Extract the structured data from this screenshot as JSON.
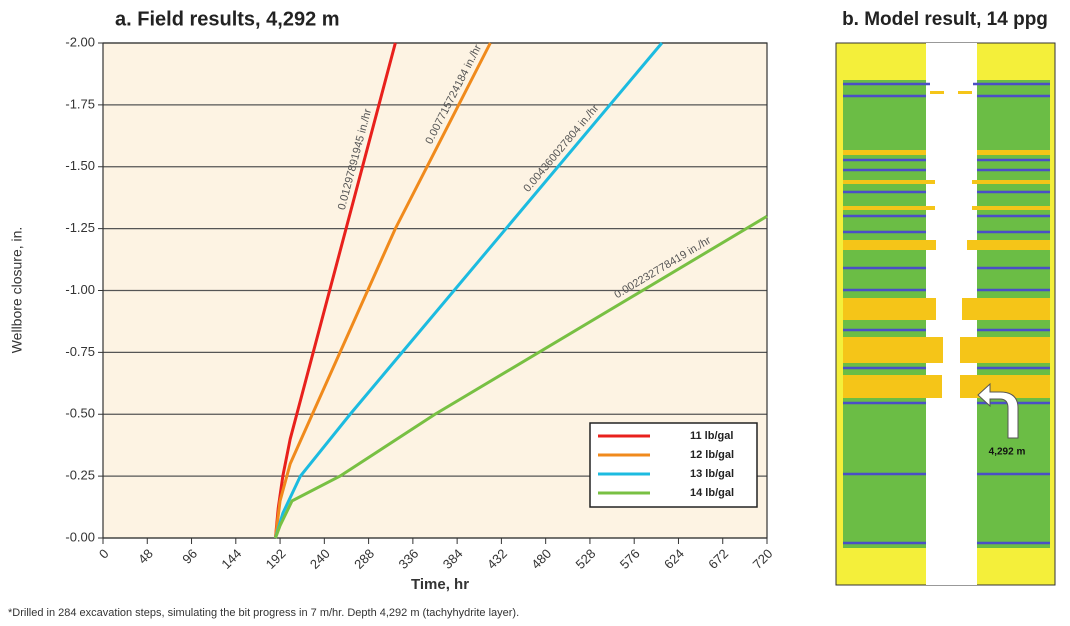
{
  "chart_data": {
    "type": "line",
    "title": "a. Field results, 4,292 m",
    "x_label": "Time, hr",
    "y_label": "Wellbore closure, in.",
    "xlim": [
      0,
      720
    ],
    "xticks": [
      0,
      48,
      96,
      144,
      192,
      240,
      288,
      336,
      384,
      432,
      480,
      528,
      576,
      624,
      672,
      720
    ],
    "ylim": [
      0,
      -2
    ],
    "yticks": [
      {
        "value": 0,
        "label": "-0.00"
      },
      {
        "value": -0.25,
        "label": "-0.25"
      },
      {
        "value": -0.5,
        "label": "-0.50"
      },
      {
        "value": -0.75,
        "label": "-0.75"
      },
      {
        "value": -1,
        "label": "-1.00"
      },
      {
        "value": -1.25,
        "label": "-1.25"
      },
      {
        "value": -1.5,
        "label": "-1.50"
      },
      {
        "value": -1.75,
        "label": "-1.75"
      },
      {
        "value": -2,
        "label": "-2.00"
      }
    ],
    "grid": true,
    "legend": "lower-right",
    "series": [
      {
        "name": "11 lb/gal",
        "color": "#e8201c",
        "rate_label": "0.01297891945 in./hr",
        "x": [
          187,
          190,
          195,
          203,
          317
        ],
        "values": [
          0,
          -0.12,
          -0.25,
          -0.4,
          -2
        ]
      },
      {
        "name": "12 lb/gal",
        "color": "#f08a1c",
        "rate_label": "0.007715724184 in./hr",
        "x": [
          187,
          192,
          203,
          257,
          317,
          420
        ],
        "values": [
          0,
          -0.15,
          -0.3,
          -0.75,
          -1.25,
          -2
        ]
      },
      {
        "name": "13 lb/gal",
        "color": "#1cbbe0",
        "rate_label": "0.004360027804 in./hr",
        "x": [
          187,
          195,
          214,
          268,
          606
        ],
        "values": [
          0,
          -0.1,
          -0.25,
          -0.5,
          -2
        ]
      },
      {
        "name": "14 lb/gal",
        "color": "#78c043",
        "rate_label": "0.002232778419 in./hr",
        "x": [
          187,
          192,
          205,
          257,
          360,
          720
        ],
        "values": [
          0,
          -0.05,
          -0.15,
          -0.25,
          -0.5,
          -1.3
        ]
      }
    ]
  },
  "model_panel": {
    "title": "b. Model result, 14 ppg",
    "depth_label": "4,292 m"
  },
  "footnote": "*Drilled in 284 excavation steps, simulating the bit progress in 7 m/hr. Depth 4,292 m (tachyhydrite layer)."
}
